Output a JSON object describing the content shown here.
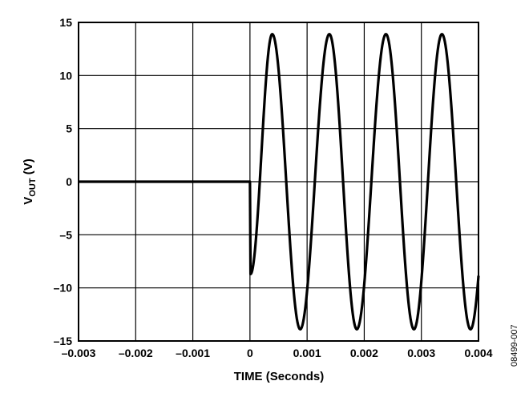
{
  "chart_data": {
    "type": "line",
    "title": "",
    "xlabel": "TIME (Seconds)",
    "ylabel_main": "V",
    "ylabel_sub": "OUT",
    "ylabel_unit": " (V)",
    "xlim": [
      -0.003,
      0.004
    ],
    "ylim": [
      -15,
      15
    ],
    "grid": true,
    "x_ticks": [
      -0.003,
      -0.002,
      -0.001,
      0,
      0.001,
      0.002,
      0.003,
      0.004
    ],
    "x_tick_labels": [
      "–0.003",
      "–0.002",
      "–0.001",
      "0",
      "0.001",
      "0.002",
      "0.003",
      "0.004"
    ],
    "y_ticks": [
      15,
      10,
      5,
      0,
      -5,
      -10,
      -15
    ],
    "y_tick_labels": [
      "15",
      "10",
      "5",
      "0",
      "–5",
      "–10",
      "–15"
    ],
    "series": [
      {
        "color": "#000000",
        "points": [
          [
            -0.003,
            0
          ],
          [
            0,
            0
          ],
          [
            1e-05,
            -8.7
          ],
          [
            0.00039,
            13.9
          ],
          [
            0.00088,
            -13.9
          ],
          [
            0.00139,
            13.9
          ],
          [
            0.00187,
            -13.9
          ],
          [
            0.00238,
            13.9
          ],
          [
            0.00287,
            -13.9
          ],
          [
            0.00336,
            13.9
          ],
          [
            0.00386,
            -13.9
          ],
          [
            0.004,
            -8.7
          ]
        ]
      }
    ],
    "watermark": "08499-007"
  }
}
